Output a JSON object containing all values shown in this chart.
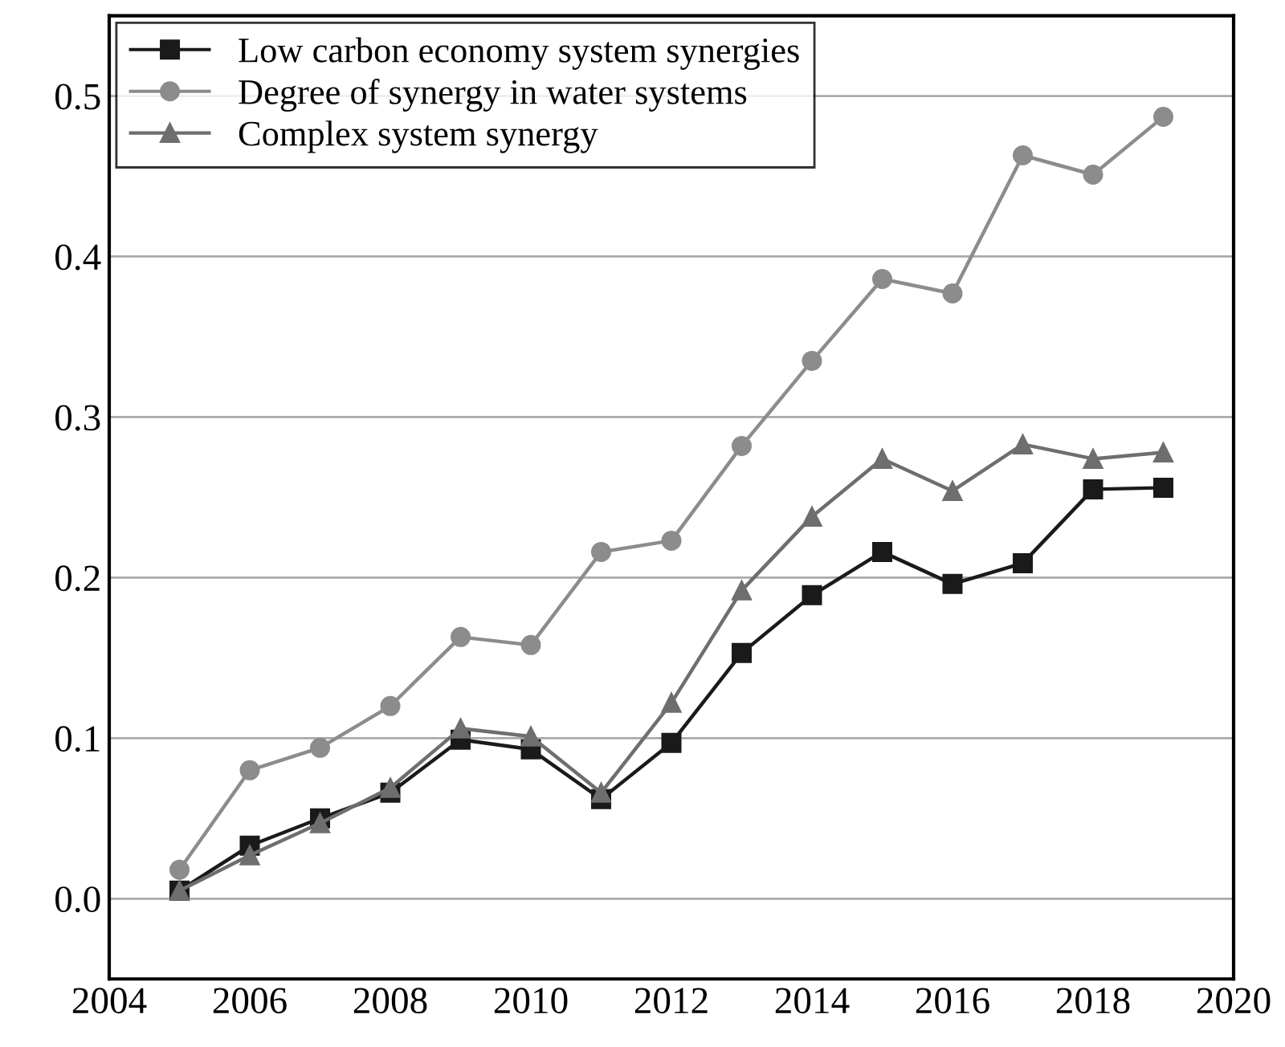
{
  "chart_data": {
    "type": "line",
    "x": [
      2005,
      2006,
      2007,
      2008,
      2009,
      2010,
      2011,
      2012,
      2013,
      2014,
      2015,
      2016,
      2017,
      2018,
      2019
    ],
    "series": [
      {
        "name": "Low carbon economy system synergies",
        "color": "#1a1a1a",
        "marker": "square",
        "values": [
          0.005,
          0.033,
          0.05,
          0.066,
          0.099,
          0.093,
          0.062,
          0.097,
          0.153,
          0.189,
          0.216,
          0.196,
          0.209,
          0.255,
          0.256
        ]
      },
      {
        "name": "Degree of synergy in water systems",
        "color": "#8c8c8c",
        "marker": "circle",
        "values": [
          0.018,
          0.08,
          0.094,
          0.12,
          0.163,
          0.158,
          0.216,
          0.223,
          0.282,
          0.335,
          0.386,
          0.377,
          0.463,
          0.451,
          0.487
        ]
      },
      {
        "name": "Complex system synergy",
        "color": "#6e6e6e",
        "marker": "triangle",
        "values": [
          0.005,
          0.027,
          0.047,
          0.069,
          0.106,
          0.101,
          0.066,
          0.122,
          0.192,
          0.238,
          0.274,
          0.254,
          0.283,
          0.274,
          0.278
        ]
      }
    ],
    "xlim": [
      2004,
      2020
    ],
    "xticks": [
      2004,
      2006,
      2008,
      2010,
      2012,
      2014,
      2016,
      2018,
      2020
    ],
    "ylim": [
      -0.05,
      0.55
    ],
    "yticks": [
      {
        "value": 0,
        "label": "0.0"
      },
      0.1,
      0.2,
      0.3,
      0.4,
      0.5
    ],
    "grid": "y",
    "legend": "top left",
    "line_style": "solid"
  }
}
